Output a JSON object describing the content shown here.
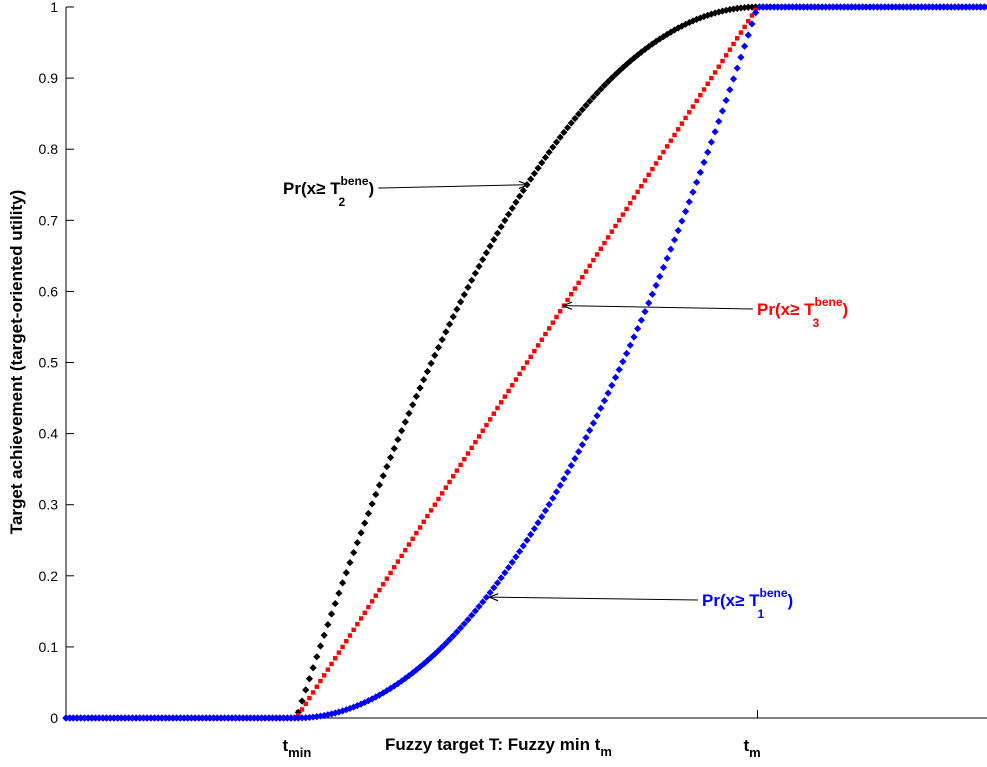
{
  "chart_data": {
    "type": "scatter",
    "title": "",
    "xlabel": "Fuzzy target T: Fuzzy min t",
    "xlabel_sub": "m",
    "ylabel": "Target achievement (target-oriented utility)",
    "xlim": [
      -0.5,
      1.5
    ],
    "ylim": [
      0,
      1
    ],
    "yticks": [
      0,
      0.1,
      0.2,
      0.3,
      0.4,
      0.5,
      0.6,
      0.7,
      0.8,
      0.9,
      1
    ],
    "yticklabels": [
      "0",
      "0.1",
      "0.2",
      "0.3",
      "0.4",
      "0.5",
      "0.6",
      "0.7",
      "0.8",
      "0.9",
      "1"
    ],
    "xticks": [
      {
        "x": 0,
        "main": "t",
        "sub": "min"
      },
      {
        "x": 1,
        "main": "t",
        "sub": "m"
      }
    ],
    "series": [
      {
        "key": "T2",
        "color": "#000000",
        "marker": "diamond",
        "curve": "concave"
      },
      {
        "key": "T3",
        "color": "#ff0000",
        "marker": "square",
        "curve": "linear"
      },
      {
        "key": "T1",
        "color": "#0000ff",
        "marker": "diamond",
        "curve": "convex"
      }
    ],
    "annotations": [
      {
        "key": "T2",
        "text": "Pr(x≥ T",
        "sub": "2",
        "sup": "bene",
        "close": ")",
        "color": "#000000",
        "arrow_to": [
          0.5,
          0.75
        ],
        "side": "left"
      },
      {
        "key": "T3",
        "text": "Pr(x≥ T",
        "sub": "3",
        "sup": "bene",
        "close": ")",
        "color": "#ff0000",
        "arrow_to": [
          0.58,
          0.58
        ],
        "side": "right"
      },
      {
        "key": "T1",
        "text": "Pr(x≥ T",
        "sub": "1",
        "sup": "bene",
        "close": ")",
        "color": "#0000ff",
        "arrow_to": [
          0.42,
          0.17
        ],
        "side": "right"
      }
    ]
  }
}
